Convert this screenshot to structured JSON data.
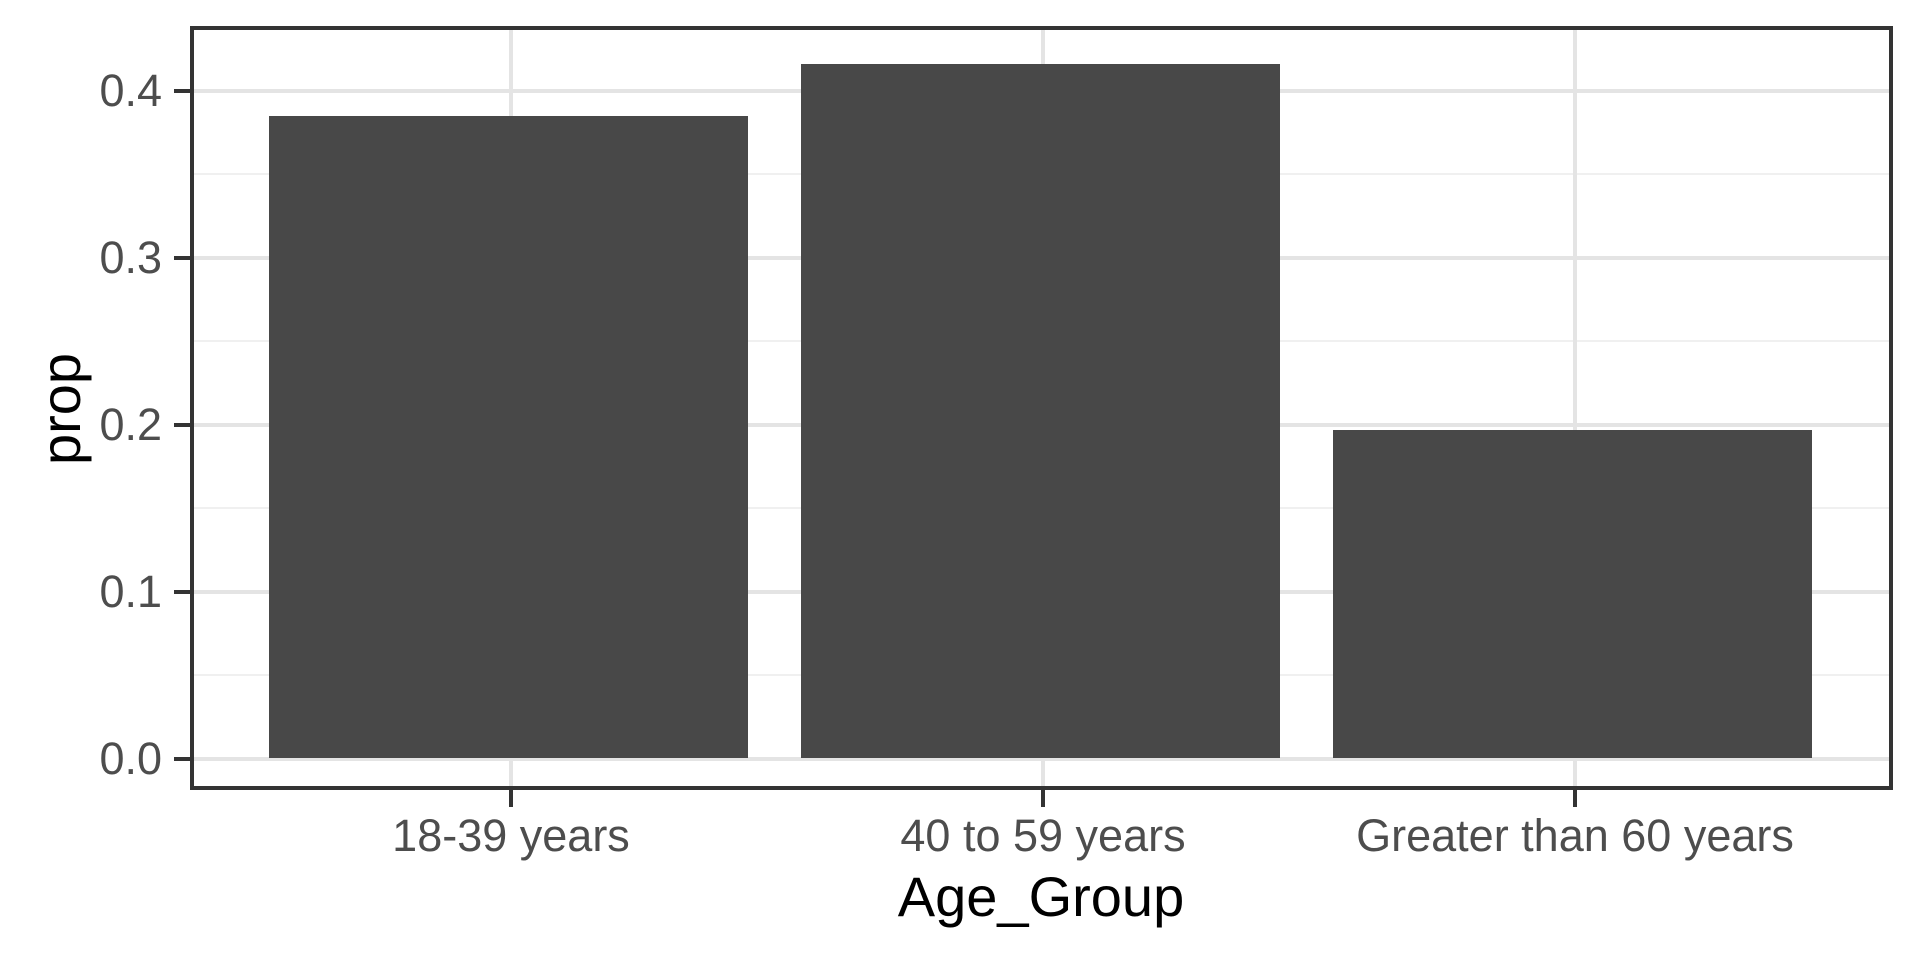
{
  "chart_data": {
    "type": "bar",
    "title": "",
    "categories": [
      "18-39 years",
      "40 to 59 years",
      "Greater than 60 years"
    ],
    "values": [
      0.386,
      0.417,
      0.197
    ],
    "xlabel": "Age_Group",
    "ylabel": "prop",
    "ylim": [
      0,
      0.44
    ],
    "y_ticks": [
      "0.0",
      "0.1",
      "0.2",
      "0.3",
      "0.4"
    ],
    "grid": "major and minor horizontal, major vertical at category centers",
    "legend_position": "none",
    "bar_color": "#484848",
    "colors": {
      "panel_background": "#ffffff",
      "panel_border": "#333333",
      "grid_major": "#e4e4e4",
      "grid_minor": "#f0f0f0",
      "axis_tick": "#333333",
      "axis_text": "#4d4d4d",
      "axis_title": "#000000"
    }
  }
}
